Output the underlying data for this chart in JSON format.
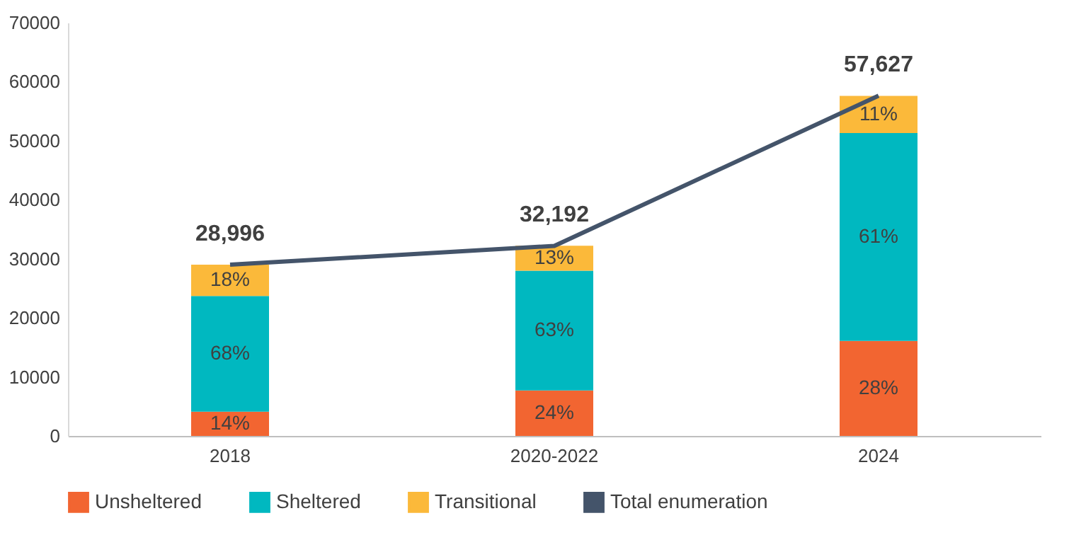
{
  "chart_data": {
    "type": "bar",
    "stacked": true,
    "categories": [
      "2018",
      "2020-2022",
      "2024"
    ],
    "series": [
      {
        "name": "Unsheltered",
        "color": "#f26531",
        "values": [
          4100,
          7700,
          16100
        ]
      },
      {
        "name": "Sheltered",
        "color": "#00b8c0",
        "values": [
          19600,
          20300,
          35200
        ]
      },
      {
        "name": "Transitional",
        "color": "#fbb93a",
        "values": [
          5300,
          4200,
          6300
        ]
      },
      {
        "name": "Total enumeration",
        "type": "line",
        "color": "#44546a",
        "values": [
          28996,
          32192,
          57627
        ],
        "value_labels": [
          "28,996",
          "32,192",
          "57,627"
        ]
      }
    ],
    "annotations": [
      "14%",
      "24%",
      "28%",
      "68%",
      "63%",
      "61%",
      "18%",
      "13%",
      "11%"
    ],
    "ylim": [
      0,
      70000
    ],
    "yticks": [
      0,
      10000,
      20000,
      30000,
      40000,
      50000,
      60000,
      70000
    ],
    "legend": "bottom"
  }
}
